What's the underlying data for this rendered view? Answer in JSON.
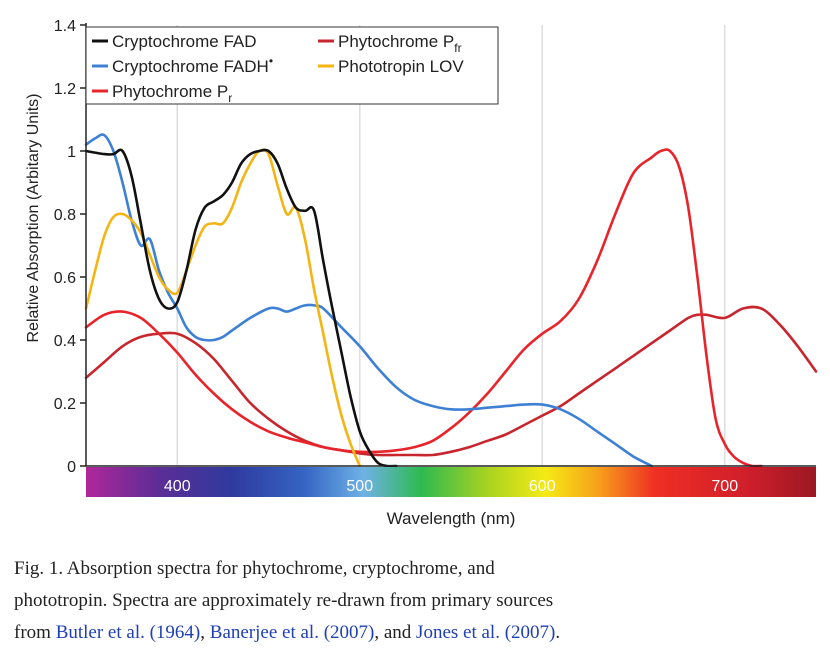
{
  "chart_data": {
    "type": "line",
    "title": "",
    "xlabel": "Wavelength (nm)",
    "ylabel": "Relative Absorption (Arbitary Units)",
    "xlim": [
      350,
      750
    ],
    "ylim": [
      0,
      1.4
    ],
    "xticks": [
      400,
      500,
      600,
      700
    ],
    "yticks": [
      0,
      0.2,
      0.4,
      0.6,
      0.8,
      1,
      1.2,
      1.4
    ],
    "ytick_labels": [
      "0",
      "0.2",
      "0.4",
      "0.6",
      "0.8",
      "1",
      "1.2",
      "1.4"
    ],
    "grid": "vertical",
    "legend_position": "top",
    "colorbar": "visible spectrum along the x axis",
    "series": [
      {
        "name": "Cryptochrome FAD",
        "name_main": "Cryptochrome FAD",
        "color": "#111111",
        "x": [
          350,
          360,
          365,
          370,
          375,
          380,
          385,
          390,
          395,
          400,
          405,
          410,
          415,
          420,
          425,
          430,
          435,
          440,
          445,
          450,
          455,
          460,
          465,
          470,
          475,
          480,
          485,
          490,
          495,
          500,
          505,
          510,
          515,
          520
        ],
        "y": [
          1.0,
          0.99,
          0.99,
          1.0,
          0.92,
          0.77,
          0.62,
          0.53,
          0.5,
          0.52,
          0.62,
          0.75,
          0.82,
          0.84,
          0.86,
          0.9,
          0.96,
          0.99,
          1.0,
          1.0,
          0.96,
          0.88,
          0.82,
          0.81,
          0.81,
          0.65,
          0.5,
          0.36,
          0.22,
          0.11,
          0.05,
          0.01,
          0.0,
          0.0
        ]
      },
      {
        "name": "Cryptochrome FADH•",
        "name_main": "Cryptochrome FADH",
        "name_sup": "•",
        "color": "#3d80d4",
        "x": [
          350,
          355,
          360,
          365,
          370,
          375,
          380,
          385,
          390,
          395,
          400,
          405,
          410,
          415,
          420,
          425,
          430,
          440,
          450,
          455,
          460,
          465,
          470,
          475,
          480,
          490,
          500,
          510,
          520,
          530,
          540,
          550,
          560,
          570,
          580,
          590,
          600,
          610,
          620,
          630,
          640,
          650,
          660
        ],
        "y": [
          1.02,
          1.04,
          1.05,
          1.0,
          0.9,
          0.78,
          0.7,
          0.72,
          0.62,
          0.55,
          0.5,
          0.44,
          0.41,
          0.4,
          0.4,
          0.41,
          0.43,
          0.47,
          0.5,
          0.5,
          0.49,
          0.5,
          0.51,
          0.51,
          0.5,
          0.44,
          0.38,
          0.31,
          0.25,
          0.21,
          0.19,
          0.18,
          0.18,
          0.185,
          0.19,
          0.195,
          0.195,
          0.18,
          0.15,
          0.11,
          0.07,
          0.03,
          0.0
        ]
      },
      {
        "name": "Phytochrome Pr",
        "name_main": "Phytochrome P",
        "name_sub": "r",
        "color": "#e8242b",
        "x": [
          350,
          360,
          370,
          380,
          390,
          400,
          410,
          420,
          430,
          440,
          450,
          460,
          470,
          480,
          490,
          500,
          510,
          520,
          530,
          540,
          550,
          560,
          570,
          580,
          590,
          600,
          610,
          620,
          630,
          640,
          650,
          660,
          665,
          670,
          675,
          680,
          685,
          690,
          695,
          700,
          705,
          710,
          715,
          720
        ],
        "y": [
          0.44,
          0.48,
          0.49,
          0.47,
          0.42,
          0.36,
          0.29,
          0.23,
          0.18,
          0.14,
          0.11,
          0.09,
          0.075,
          0.06,
          0.05,
          0.045,
          0.045,
          0.05,
          0.06,
          0.08,
          0.12,
          0.17,
          0.23,
          0.3,
          0.37,
          0.42,
          0.46,
          0.53,
          0.65,
          0.8,
          0.93,
          0.98,
          1.0,
          1.0,
          0.95,
          0.82,
          0.6,
          0.35,
          0.15,
          0.07,
          0.03,
          0.01,
          0.0,
          0.0
        ]
      },
      {
        "name": "Phytochrome Pfr",
        "name_main": "Phytochrome P",
        "name_sub": "fr",
        "color": "#c8262e",
        "x": [
          350,
          360,
          370,
          380,
          390,
          400,
          410,
          420,
          430,
          440,
          450,
          460,
          470,
          480,
          490,
          500,
          510,
          520,
          530,
          540,
          550,
          560,
          570,
          580,
          590,
          600,
          610,
          620,
          630,
          640,
          650,
          660,
          670,
          680,
          685,
          690,
          700,
          710,
          720,
          730,
          740,
          750
        ],
        "y": [
          0.28,
          0.33,
          0.38,
          0.41,
          0.42,
          0.42,
          0.39,
          0.34,
          0.27,
          0.2,
          0.15,
          0.11,
          0.08,
          0.06,
          0.05,
          0.04,
          0.035,
          0.035,
          0.035,
          0.035,
          0.045,
          0.06,
          0.08,
          0.1,
          0.13,
          0.16,
          0.19,
          0.23,
          0.27,
          0.31,
          0.35,
          0.39,
          0.43,
          0.47,
          0.48,
          0.48,
          0.47,
          0.5,
          0.5,
          0.45,
          0.38,
          0.3
        ]
      },
      {
        "name": "Phototropin LOV",
        "name_main": "Phototropin LOV",
        "color": "#f4b514",
        "x": [
          350,
          355,
          360,
          365,
          370,
          375,
          380,
          385,
          390,
          395,
          400,
          405,
          410,
          415,
          420,
          425,
          430,
          435,
          440,
          445,
          450,
          455,
          460,
          465,
          470,
          475,
          480,
          485,
          490,
          495,
          500
        ],
        "y": [
          0.5,
          0.62,
          0.73,
          0.79,
          0.8,
          0.78,
          0.74,
          0.67,
          0.6,
          0.56,
          0.55,
          0.62,
          0.7,
          0.76,
          0.77,
          0.77,
          0.82,
          0.9,
          0.96,
          1.0,
          0.99,
          0.89,
          0.8,
          0.82,
          0.72,
          0.56,
          0.42,
          0.28,
          0.16,
          0.07,
          0.0
        ]
      }
    ]
  },
  "caption": {
    "line1": "Fig. 1.  Absorption spectra for phytochrome, cryptochrome, and",
    "line2": "phototropin. Spectra are approximately re-drawn from primary sources",
    "line3_prefix": "from ",
    "ref1": "Butler et al. (1964)",
    "sep1": ", ",
    "ref2": "Banerjee et al. (2007)",
    "sep2": ", and ",
    "ref3": "Jones et al. (2007)",
    "line3_suffix": "."
  }
}
